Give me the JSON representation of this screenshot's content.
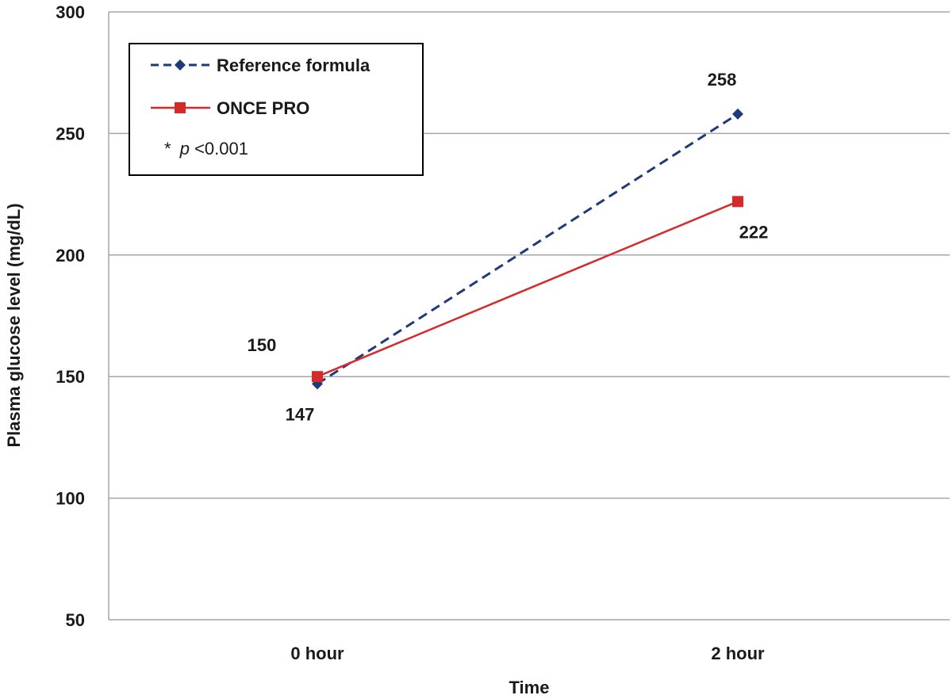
{
  "chart_data": {
    "type": "line",
    "title": "",
    "xlabel": "Time",
    "ylabel": "Plasma glucose level (mg/dL)",
    "categories": [
      "0 hour",
      "2 hour"
    ],
    "ylim": [
      50,
      300
    ],
    "yticks": [
      50,
      100,
      150,
      200,
      250,
      300
    ],
    "grid": true,
    "legend_position": "top-left",
    "series": [
      {
        "name": "Reference formula",
        "values": [
          147,
          258
        ],
        "data_labels": [
          "147",
          "258"
        ],
        "color": "#1f3a7a",
        "line_style": "dashed",
        "marker": "diamond"
      },
      {
        "name": "ONCE PRO",
        "values": [
          150,
          222
        ],
        "data_labels": [
          "150",
          "222"
        ],
        "color": "#d42a2a",
        "line_style": "solid",
        "marker": "square"
      }
    ],
    "annotation": {
      "star": "*",
      "p": "p",
      "rest": "<0.001"
    }
  }
}
